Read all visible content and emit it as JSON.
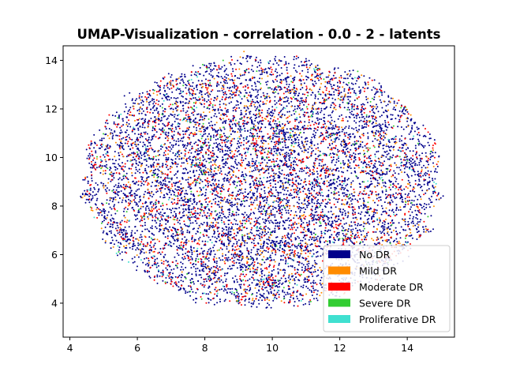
{
  "chart_data": {
    "type": "scatter",
    "title": "UMAP-Visualization - correlation - 0.0 - 2 - latents",
    "xlabel": "",
    "ylabel": "",
    "xlim": [
      3.8,
      15.4
    ],
    "ylim": [
      2.6,
      14.6
    ],
    "x_ticks": [
      4,
      6,
      8,
      10,
      12,
      14
    ],
    "y_ticks": [
      4,
      6,
      8,
      10,
      12,
      14
    ],
    "grid": false,
    "legend_position": "lower-right",
    "marker_size_px": 2,
    "cloud": {
      "center": [
        9.7,
        9.0
      ],
      "x_extent": [
        4.4,
        14.9
      ],
      "y_extent": [
        3.8,
        14.1
      ],
      "approx_point_count": 9000
    },
    "series": [
      {
        "name": "No DR",
        "color": "#00008b",
        "share": 0.73
      },
      {
        "name": "Mild DR",
        "color": "#ff8c00",
        "share": 0.07
      },
      {
        "name": "Moderate DR",
        "color": "#ff0000",
        "share": 0.15
      },
      {
        "name": "Severe DR",
        "color": "#32cd32",
        "share": 0.03
      },
      {
        "name": "Proliferative DR",
        "color": "#40e0d0",
        "share": 0.02
      }
    ]
  }
}
